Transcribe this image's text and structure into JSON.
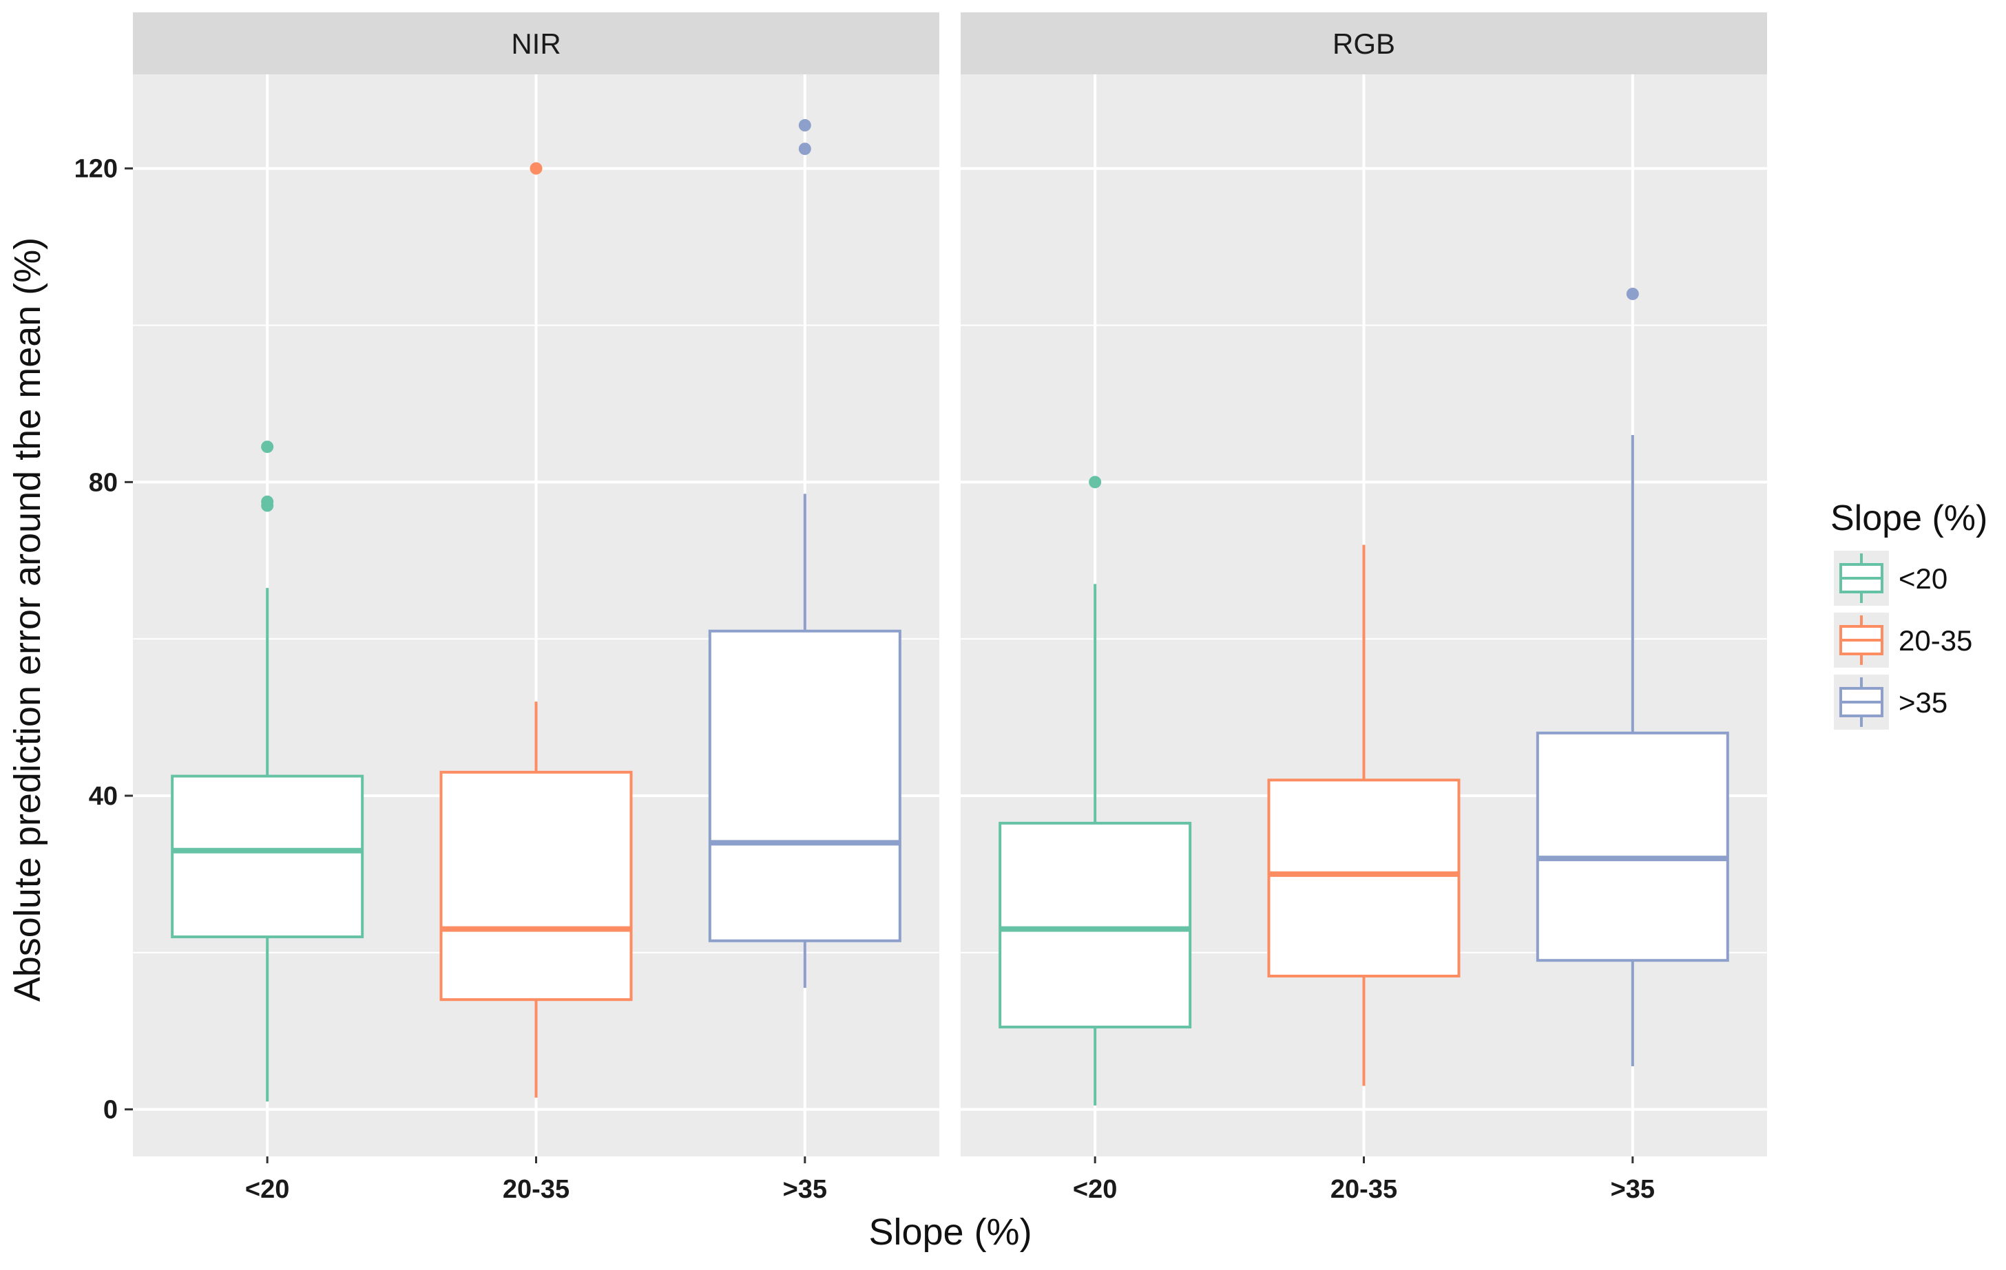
{
  "chart_data": {
    "type": "boxplot",
    "facets": [
      "NIR",
      "RGB"
    ],
    "categories": [
      "<20",
      "20-35",
      ">35"
    ],
    "xlabel": "Slope (%)",
    "ylabel": "Absolute prediction error around the mean (%)",
    "ylim": [
      -6,
      132
    ],
    "yticks": [
      0,
      40,
      80,
      120
    ],
    "grid": true,
    "legend": {
      "title": "Slope (%)",
      "placement": "right",
      "entries": [
        "<20",
        "20-35",
        ">35"
      ]
    },
    "colors": {
      "<20": "#66c2a5",
      "20-35": "#fc8d62",
      ">35": "#8da0cb",
      "panel_bg": "#ebebeb",
      "strip_bg": "#d9d9d9",
      "grid": "#ffffff"
    },
    "panels": [
      {
        "facet": "NIR",
        "boxes": [
          {
            "category": "<20",
            "whisker_low": 1,
            "q1": 22,
            "median": 33,
            "q3": 42.5,
            "whisker_high": 66.5,
            "outliers": [
              84.5,
              77.5,
              77
            ]
          },
          {
            "category": "20-35",
            "whisker_low": 1.5,
            "q1": 14,
            "median": 23,
            "q3": 43,
            "whisker_high": 52,
            "outliers": [
              120
            ]
          },
          {
            "category": ">35",
            "whisker_low": 15.5,
            "q1": 21.5,
            "median": 34,
            "q3": 61,
            "whisker_high": 78.5,
            "outliers": [
              125.5,
              122.5
            ]
          }
        ]
      },
      {
        "facet": "RGB",
        "boxes": [
          {
            "category": "<20",
            "whisker_low": 0.5,
            "q1": 10.5,
            "median": 23,
            "q3": 36.5,
            "whisker_high": 67,
            "outliers": [
              80
            ]
          },
          {
            "category": "20-35",
            "whisker_low": 3,
            "q1": 17,
            "median": 30,
            "q3": 42,
            "whisker_high": 72,
            "outliers": []
          },
          {
            "category": ">35",
            "whisker_low": 5.5,
            "q1": 19,
            "median": 32,
            "q3": 48,
            "whisker_high": 86,
            "outliers": [
              104
            ]
          }
        ]
      }
    ]
  }
}
